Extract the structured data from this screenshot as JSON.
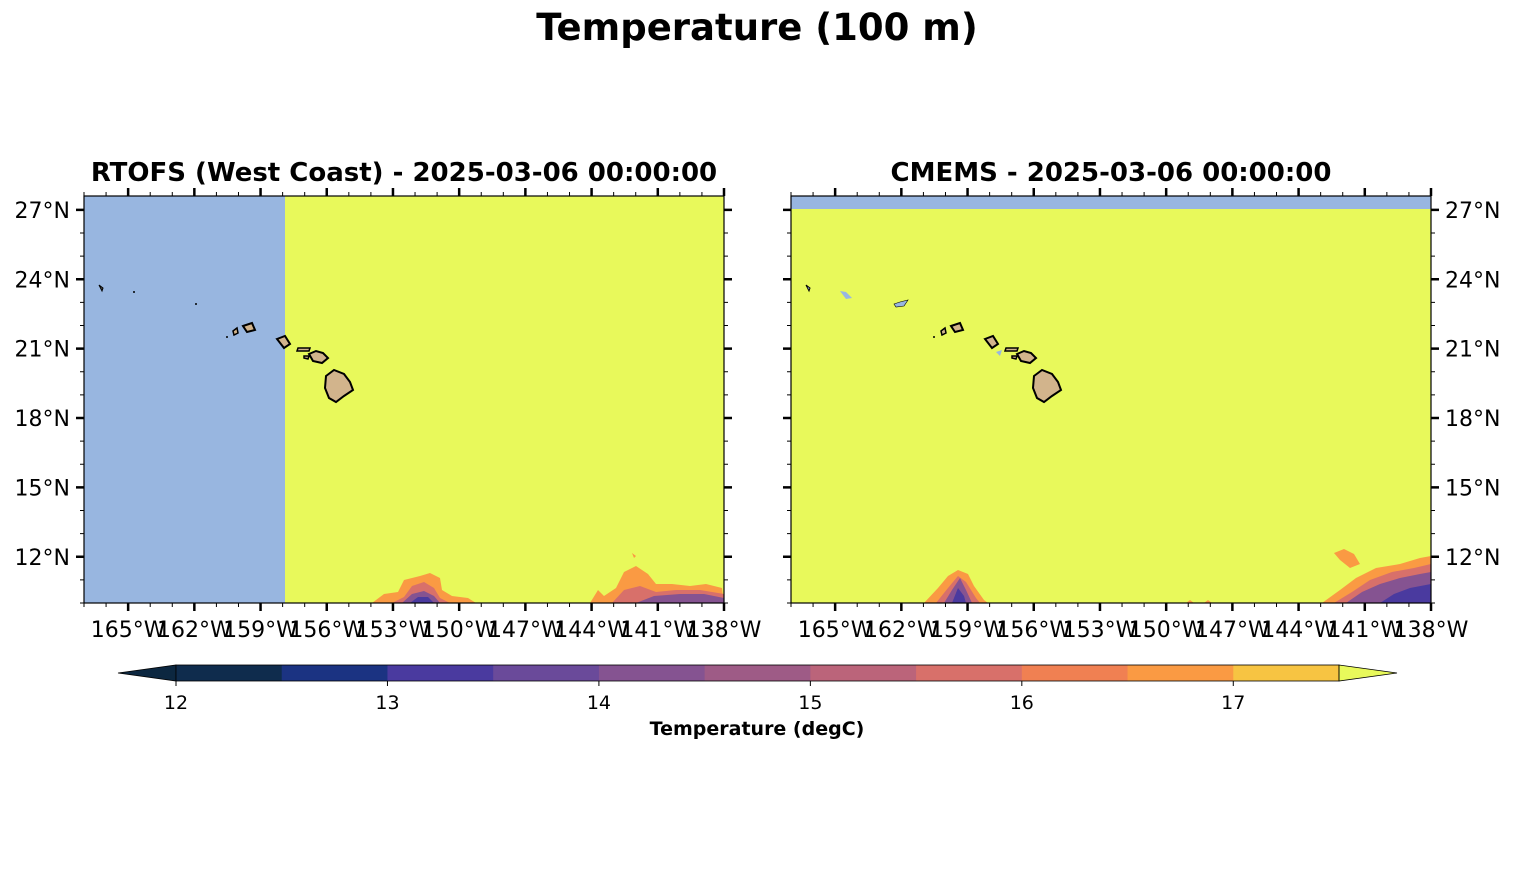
{
  "figure": {
    "title": "Temperature (100 m)"
  },
  "panels": [
    {
      "title": "RTOFS (West Coast) - 2025-03-06 00:00:00",
      "lat_labels_side": "left",
      "no_data_west_of_lon": -157.5,
      "no_data_north_of_lat": null
    },
    {
      "title": "CMEMS - 2025-03-06 00:00:00",
      "lat_labels_side": "right",
      "no_data_west_of_lon": null,
      "no_data_north_of_lat": 27.0
    }
  ],
  "map": {
    "lon_range": [
      -167,
      -138
    ],
    "lat_range": [
      10,
      27.6
    ],
    "lon_ticks": [
      -165,
      -162,
      -159,
      -156,
      -153,
      -150,
      -147,
      -144,
      -141,
      -138
    ],
    "lon_tick_labels": [
      "165°W",
      "162°W",
      "159°W",
      "156°W",
      "153°W",
      "150°W",
      "147°W",
      "144°W",
      "141°W",
      "138°W"
    ],
    "lat_ticks": [
      12,
      15,
      18,
      21,
      24,
      27
    ],
    "lat_tick_labels": [
      "12°N",
      "15°N",
      "18°N",
      "21°N",
      "24°N",
      "27°N"
    ],
    "colors": {
      "no_data": "#98b6e0",
      "warm_water": "#e8f95b",
      "land": "#d2b48c",
      "coastline": "#000000"
    }
  },
  "colorbar": {
    "label": "Temperature (degC)",
    "ticks": [
      12,
      13,
      14,
      15,
      16,
      17
    ],
    "bounds": [
      12,
      17.5
    ],
    "step": 0.5,
    "extend": "both",
    "under_color": "#0c2740",
    "over_color": "#e8f95b",
    "bin_colors": [
      "#0f2c4d",
      "#1b3382",
      "#4a3a9f",
      "#6a4a9a",
      "#855391",
      "#9e5b86",
      "#bb647a",
      "#d8706a",
      "#f08052",
      "#fa9a43",
      "#f7c442"
    ]
  },
  "chart_data": {
    "type": "heatmap",
    "title": "Temperature (100 m)",
    "variable_label": "Temperature (degC)",
    "colorbar_range": [
      12,
      17.5
    ],
    "panels": [
      {
        "title": "RTOFS (West Coast) - 2025-03-06 00:00:00",
        "x_range": [
          -167,
          -138
        ],
        "y_range": [
          10,
          27.6
        ],
        "dominant_value": "> 17.5",
        "cool_patches": [
          {
            "lon": -151.5,
            "lat": 10.4,
            "min_temp": 13.0
          },
          {
            "lon": -140.0,
            "lat": 10.8,
            "min_temp": 14.5
          }
        ]
      },
      {
        "title": "CMEMS - 2025-03-06 00:00:00",
        "x_range": [
          -167,
          -138
        ],
        "y_range": [
          10,
          27.6
        ],
        "dominant_value": "> 17.5",
        "cool_patches": [
          {
            "lon": -159.0,
            "lat": 10.5,
            "min_temp": 13.0
          },
          {
            "lon": -140.5,
            "lat": 10.8,
            "min_temp": 13.5
          }
        ]
      }
    ]
  }
}
